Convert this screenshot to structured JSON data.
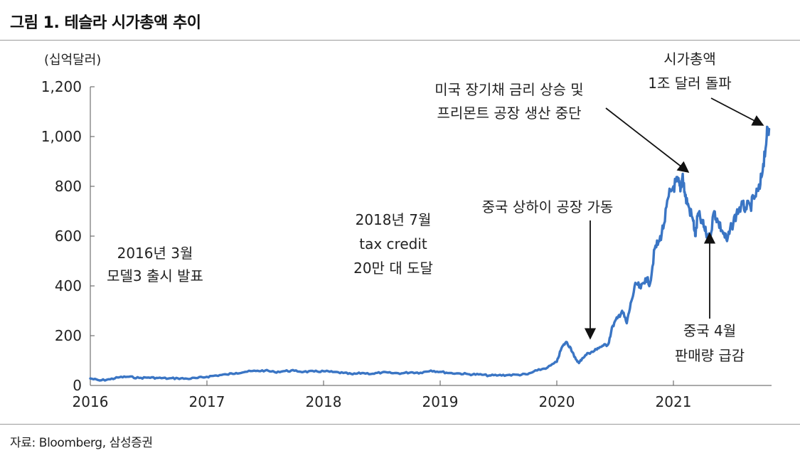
{
  "figure_title": "그림 1.  테슬라 시가총액 추이",
  "source": "자료: Bloomberg, 삼성증권",
  "chart_data": {
    "type": "line",
    "ylabel": "(십억달러)",
    "ylim": [
      0,
      1200
    ],
    "yticks": [
      0,
      200,
      400,
      600,
      800,
      1000,
      1200
    ],
    "ytick_labels": [
      "0",
      "200",
      "400",
      "600",
      "800",
      "1,000",
      "1,200"
    ],
    "xlim": [
      2016,
      2021.82
    ],
    "xticks": [
      2016,
      2017,
      2018,
      2019,
      2020,
      2021
    ],
    "xtick_labels": [
      "2016",
      "2017",
      "2018",
      "2019",
      "2020",
      "2021"
    ],
    "grid": false,
    "color": "#3A75C4",
    "x": [
      2016.0,
      2016.08,
      2016.17,
      2016.25,
      2016.33,
      2016.42,
      2016.5,
      2016.58,
      2016.67,
      2016.75,
      2016.83,
      2016.92,
      2017.0,
      2017.08,
      2017.17,
      2017.25,
      2017.33,
      2017.42,
      2017.5,
      2017.58,
      2017.67,
      2017.75,
      2017.83,
      2017.92,
      2018.0,
      2018.08,
      2018.17,
      2018.25,
      2018.33,
      2018.42,
      2018.5,
      2018.58,
      2018.67,
      2018.75,
      2018.83,
      2018.92,
      2019.0,
      2019.08,
      2019.17,
      2019.25,
      2019.33,
      2019.42,
      2019.5,
      2019.58,
      2019.67,
      2019.75,
      2019.83,
      2019.92,
      2020.0,
      2020.04,
      2020.08,
      2020.12,
      2020.15,
      2020.19,
      2020.22,
      2020.27,
      2020.31,
      2020.35,
      2020.4,
      2020.44,
      2020.48,
      2020.52,
      2020.56,
      2020.6,
      2020.64,
      2020.68,
      2020.72,
      2020.76,
      2020.8,
      2020.84,
      2020.88,
      2020.92,
      2020.96,
      2021.0,
      2021.04,
      2021.06,
      2021.08,
      2021.1,
      2021.13,
      2021.17,
      2021.19,
      2021.21,
      2021.25,
      2021.28,
      2021.31,
      2021.35,
      2021.38,
      2021.42,
      2021.46,
      2021.5,
      2021.54,
      2021.58,
      2021.62,
      2021.66,
      2021.7,
      2021.74,
      2021.77,
      2021.8,
      2021.82
    ],
    "y": [
      28,
      20,
      25,
      33,
      35,
      30,
      32,
      30,
      28,
      29,
      27,
      30,
      35,
      40,
      44,
      50,
      55,
      58,
      60,
      54,
      58,
      59,
      55,
      56,
      57,
      54,
      50,
      45,
      50,
      47,
      52,
      50,
      49,
      53,
      51,
      60,
      55,
      50,
      48,
      45,
      44,
      40,
      41,
      42,
      43,
      45,
      60,
      72,
      95,
      150,
      175,
      150,
      115,
      90,
      110,
      130,
      135,
      150,
      160,
      165,
      240,
      270,
      300,
      250,
      340,
      410,
      390,
      430,
      410,
      550,
      580,
      650,
      760,
      800,
      820,
      780,
      850,
      760,
      720,
      660,
      600,
      690,
      650,
      610,
      590,
      700,
      660,
      620,
      580,
      640,
      690,
      720,
      715,
      720,
      760,
      790,
      890,
      1000,
      1030
    ],
    "annotations": [
      {
        "lines": [
          "2016년 3월",
          "모델3 출시 발표"
        ]
      },
      {
        "lines": [
          "2018년 7월",
          "tax credit",
          "20만 대 도달"
        ]
      },
      {
        "lines": [
          "중국 상하이 공장 가동"
        ]
      },
      {
        "lines": [
          "미국 장기채 금리 상승 및",
          "프리몬트 공장 생산 중단"
        ]
      },
      {
        "lines": [
          "시가총액",
          "1조 달러 돌파"
        ]
      },
      {
        "lines": [
          "중국 4월",
          "판매량 급감"
        ]
      }
    ]
  }
}
